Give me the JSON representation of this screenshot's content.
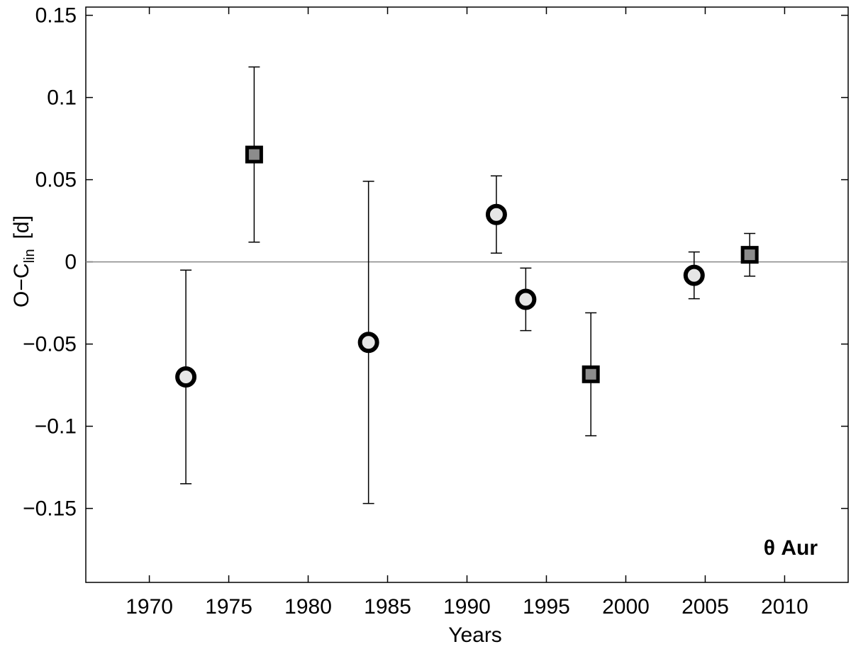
{
  "chart_data": {
    "type": "scatter",
    "xlabel": "Years",
    "ylabel": "O−C",
    "ylabel_sub": "lin",
    "ylabel_unit": "[d]",
    "annotation": "θ Aur",
    "xlim": [
      1966,
      2014
    ],
    "xticks": [
      1970,
      1975,
      1980,
      1985,
      1990,
      1995,
      2000,
      2005,
      2010
    ],
    "ylim": [
      -0.195,
      0.155
    ],
    "yticks": [
      {
        "value": -0.15,
        "label": "−0.15"
      },
      {
        "value": -0.1,
        "label": "−0.1"
      },
      {
        "value": -0.05,
        "label": "−0.05"
      },
      0,
      0.05,
      0.1,
      0.15
    ],
    "hline": 0,
    "series": [
      {
        "marker": "circle",
        "color": "#e6e6e6",
        "x": [
          1972.3,
          1983.8,
          1991.85,
          1993.7,
          2004.3
        ],
        "values": [
          -0.07,
          -0.049,
          0.0288,
          -0.0228,
          -0.0082
        ],
        "errors": [
          0.065,
          0.098,
          0.0235,
          0.019,
          0.0142
        ]
      },
      {
        "marker": "square",
        "color": "#8c8c8c",
        "x": [
          1976.6,
          1997.8,
          2007.8
        ],
        "values": [
          0.0653,
          -0.0684,
          0.0043
        ],
        "errors": [
          0.0533,
          0.0374,
          0.013
        ]
      }
    ]
  }
}
